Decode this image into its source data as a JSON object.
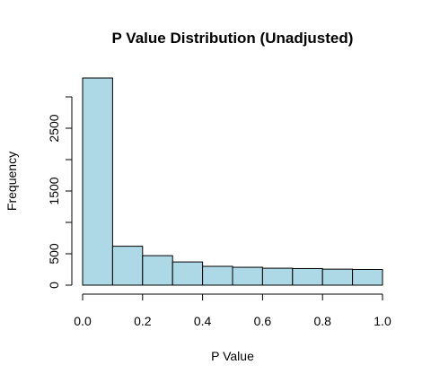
{
  "chart_data": {
    "type": "bar",
    "title": "P Value Distribution (Unadjusted)",
    "xlabel": "P Value",
    "ylabel": "Frequency",
    "bin_edges": [
      0.0,
      0.1,
      0.2,
      0.3,
      0.4,
      0.5,
      0.6,
      0.7,
      0.8,
      0.9,
      1.0
    ],
    "values": [
      3300,
      620,
      470,
      370,
      300,
      285,
      270,
      265,
      255,
      250
    ],
    "xlim": [
      0,
      1
    ],
    "ylim": [
      0,
      3300
    ],
    "x_ticks": [
      0.0,
      0.2,
      0.4,
      0.6,
      0.8,
      1.0
    ],
    "x_tick_labels": [
      "0.0",
      "0.2",
      "0.4",
      "0.6",
      "0.8",
      "1.0"
    ],
    "y_ticks": [
      0,
      500,
      1000,
      1500,
      2000,
      2500,
      3000
    ],
    "y_tick_labels": [
      "0",
      "500",
      "",
      "1500",
      "",
      "2500",
      ""
    ],
    "bar_color": "#add8e6",
    "edge_color": "#000000",
    "grid": false,
    "legend": "none"
  }
}
